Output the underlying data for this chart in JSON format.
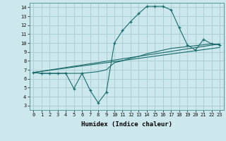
{
  "xlabel": "Humidex (Indice chaleur)",
  "background_color": "#cce8ec",
  "grid_color": "#aacfd5",
  "line_color": "#1a6b6b",
  "xlim": [
    -0.5,
    23.5
  ],
  "ylim": [
    2.5,
    14.5
  ],
  "xticks": [
    0,
    1,
    2,
    3,
    4,
    5,
    6,
    7,
    8,
    9,
    10,
    11,
    12,
    13,
    14,
    15,
    16,
    17,
    18,
    19,
    20,
    21,
    22,
    23
  ],
  "yticks": [
    3,
    4,
    5,
    6,
    7,
    8,
    9,
    10,
    11,
    12,
    13,
    14
  ],
  "line1_x": [
    0,
    1,
    2,
    3,
    4,
    5,
    6,
    7,
    8,
    9,
    10,
    11,
    12,
    13,
    14,
    15,
    16,
    17,
    18,
    19,
    20,
    21,
    22,
    23
  ],
  "line1_y": [
    6.7,
    6.6,
    6.6,
    6.6,
    6.6,
    4.9,
    6.6,
    4.7,
    3.3,
    4.5,
    10.0,
    11.4,
    12.4,
    13.3,
    14.1,
    14.1,
    14.1,
    13.7,
    11.7,
    9.8,
    9.2,
    10.4,
    9.9,
    9.8
  ],
  "line2_x": [
    0,
    1,
    2,
    3,
    4,
    5,
    6,
    7,
    8,
    9,
    10,
    11,
    12,
    13,
    14,
    15,
    16,
    17,
    18,
    19,
    20,
    21,
    22,
    23
  ],
  "line2_y": [
    6.7,
    6.6,
    6.6,
    6.6,
    6.6,
    6.6,
    6.6,
    6.7,
    6.8,
    7.0,
    7.8,
    8.0,
    8.3,
    8.5,
    8.8,
    9.0,
    9.2,
    9.4,
    9.5,
    9.6,
    9.7,
    9.8,
    9.9,
    9.8
  ],
  "line3_y": [
    6.7,
    9.9
  ],
  "line4_y": [
    6.7,
    9.5
  ],
  "fontsize_tick": 5.0,
  "fontsize_label": 6.5
}
